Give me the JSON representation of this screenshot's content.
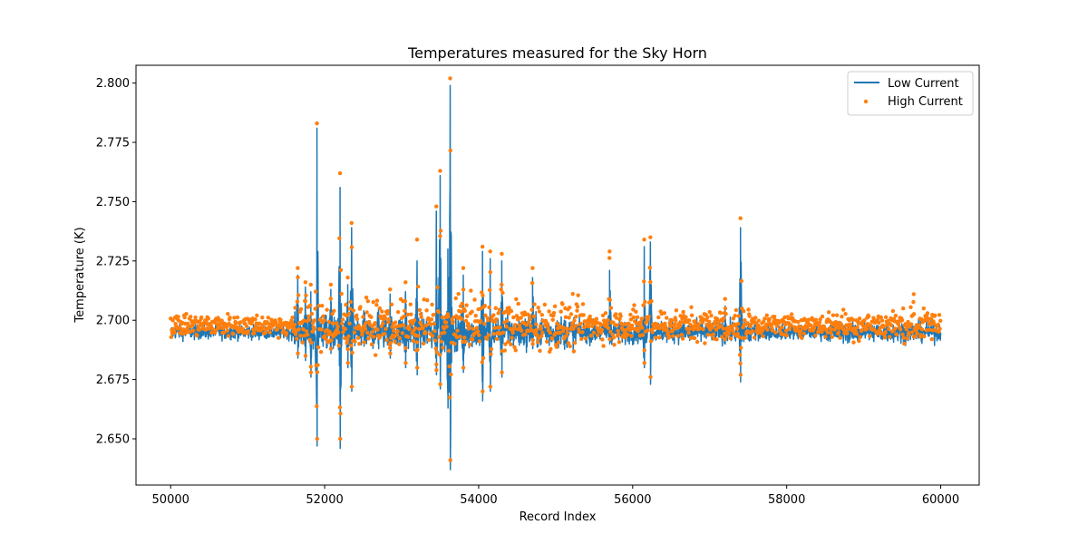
{
  "chart_data": {
    "type": "line",
    "title": "Temperatures measured for the Sky Horn",
    "xlabel": "Record Index",
    "ylabel": "Temperature (K)",
    "xlim": [
      49550,
      60500
    ],
    "ylim": [
      2.6305,
      2.8075
    ],
    "xticks": [
      50000,
      52000,
      54000,
      56000,
      58000,
      60000
    ],
    "yticks": [
      2.65,
      2.675,
      2.7,
      2.725,
      2.75,
      2.775,
      2.8
    ],
    "ytick_labels": [
      "2.650",
      "2.675",
      "2.700",
      "2.725",
      "2.750",
      "2.775",
      "2.800"
    ],
    "grid": false,
    "legend_position": "top-right",
    "colors": {
      "low": "#1f77b4",
      "high": "#ff7f0e"
    },
    "series": [
      {
        "name": "Low Current",
        "style": "line",
        "color": "#1f77b4",
        "x_range": [
          50000,
          60000
        ],
        "baseline": 2.695,
        "noise": 0.0015,
        "spikes": [
          {
            "x": 51650,
            "hi": 2.719,
            "lo": 2.684
          },
          {
            "x": 51750,
            "hi": 2.714,
            "lo": 2.683
          },
          {
            "x": 51820,
            "hi": 2.712,
            "lo": 2.676
          },
          {
            "x": 51900,
            "hi": 2.781,
            "lo": 2.647
          },
          {
            "x": 52080,
            "hi": 2.713,
            "lo": 2.686
          },
          {
            "x": 52200,
            "hi": 2.756,
            "lo": 2.646
          },
          {
            "x": 52300,
            "hi": 2.715,
            "lo": 2.68
          },
          {
            "x": 52350,
            "hi": 2.739,
            "lo": 2.67
          },
          {
            "x": 52700,
            "hi": 2.705,
            "lo": 2.688
          },
          {
            "x": 52850,
            "hi": 2.711,
            "lo": 2.684
          },
          {
            "x": 53050,
            "hi": 2.712,
            "lo": 2.68
          },
          {
            "x": 53200,
            "hi": 2.725,
            "lo": 2.677
          },
          {
            "x": 53450,
            "hi": 2.746,
            "lo": 2.677
          },
          {
            "x": 53500,
            "hi": 2.761,
            "lo": 2.671
          },
          {
            "x": 53600,
            "hi": 2.73,
            "lo": 2.663
          },
          {
            "x": 53630,
            "hi": 2.799,
            "lo": 2.637
          },
          {
            "x": 53800,
            "hi": 2.719,
            "lo": 2.678
          },
          {
            "x": 54050,
            "hi": 2.729,
            "lo": 2.666
          },
          {
            "x": 54150,
            "hi": 2.726,
            "lo": 2.67
          },
          {
            "x": 54300,
            "hi": 2.725,
            "lo": 2.676
          },
          {
            "x": 54700,
            "hi": 2.718,
            "lo": 2.688
          },
          {
            "x": 55700,
            "hi": 2.721,
            "lo": 2.69
          },
          {
            "x": 56150,
            "hi": 2.731,
            "lo": 2.68
          },
          {
            "x": 56230,
            "hi": 2.733,
            "lo": 2.673
          },
          {
            "x": 57200,
            "hi": 2.706,
            "lo": 2.69
          },
          {
            "x": 57400,
            "hi": 2.739,
            "lo": 2.674
          }
        ]
      },
      {
        "name": "High Current",
        "style": "scatter",
        "color": "#ff7f0e",
        "x_range": [
          50000,
          60000
        ],
        "baseline": 2.698,
        "noise": 0.0022,
        "spikes": [
          {
            "x": 51650,
            "hi": 2.722,
            "lo": 2.686
          },
          {
            "x": 51750,
            "hi": 2.716,
            "lo": 2.685
          },
          {
            "x": 51820,
            "hi": 2.715,
            "lo": 2.678
          },
          {
            "x": 51900,
            "hi": 2.783,
            "lo": 2.65
          },
          {
            "x": 52080,
            "hi": 2.715,
            "lo": 2.688
          },
          {
            "x": 52200,
            "hi": 2.762,
            "lo": 2.65
          },
          {
            "x": 52300,
            "hi": 2.718,
            "lo": 2.682
          },
          {
            "x": 52350,
            "hi": 2.741,
            "lo": 2.672
          },
          {
            "x": 52850,
            "hi": 2.713,
            "lo": 2.686
          },
          {
            "x": 53050,
            "hi": 2.716,
            "lo": 2.682
          },
          {
            "x": 53200,
            "hi": 2.734,
            "lo": 2.68
          },
          {
            "x": 53450,
            "hi": 2.748,
            "lo": 2.679
          },
          {
            "x": 53500,
            "hi": 2.763,
            "lo": 2.673
          },
          {
            "x": 53630,
            "hi": 2.802,
            "lo": 2.641
          },
          {
            "x": 53800,
            "hi": 2.722,
            "lo": 2.68
          },
          {
            "x": 54050,
            "hi": 2.731,
            "lo": 2.67
          },
          {
            "x": 54150,
            "hi": 2.729,
            "lo": 2.672
          },
          {
            "x": 54300,
            "hi": 2.728,
            "lo": 2.678
          },
          {
            "x": 54700,
            "hi": 2.722,
            "lo": 2.69
          },
          {
            "x": 55700,
            "hi": 2.729,
            "lo": 2.692
          },
          {
            "x": 56150,
            "hi": 2.734,
            "lo": 2.682
          },
          {
            "x": 56230,
            "hi": 2.735,
            "lo": 2.676
          },
          {
            "x": 57200,
            "hi": 2.709,
            "lo": 2.692
          },
          {
            "x": 57400,
            "hi": 2.743,
            "lo": 2.677
          },
          {
            "x": 59650,
            "hi": 2.711,
            "lo": 2.693
          }
        ]
      }
    ]
  }
}
